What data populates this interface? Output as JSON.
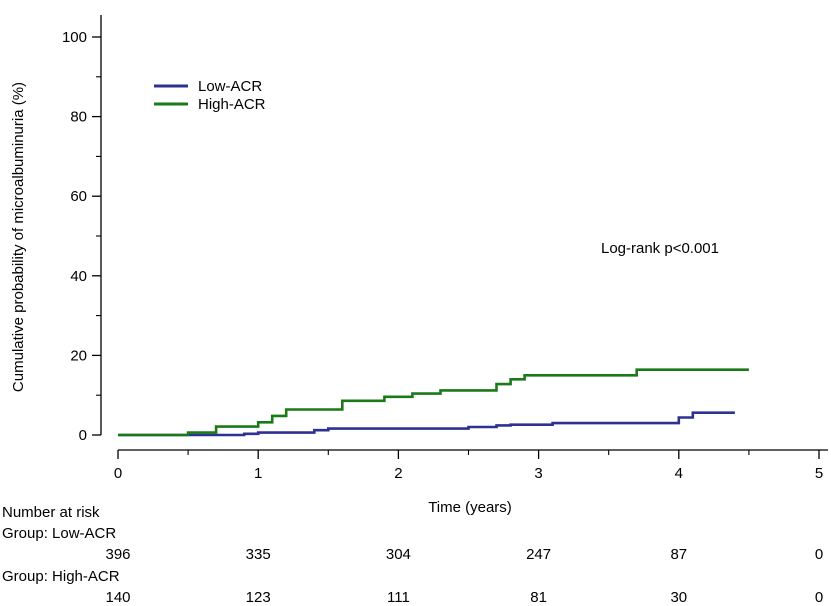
{
  "chart_data": {
    "type": "line",
    "xlabel": "Time (years)",
    "ylabel": "Cumulative probability of microalbuminuria (%)",
    "xlim": [
      0,
      5
    ],
    "ylim": [
      0,
      100
    ],
    "x_ticks": [
      0,
      1,
      2,
      3,
      4,
      5
    ],
    "y_ticks": [
      0,
      20,
      40,
      60,
      80,
      100
    ],
    "grid": false,
    "legend_position": "top-left",
    "annotation": "Log-rank p<0.001",
    "series": [
      {
        "name": "Low-ACR",
        "color": "#2e3192",
        "step": true,
        "points": [
          [
            0,
            0
          ],
          [
            0.7,
            0
          ],
          [
            0.9,
            0.3
          ],
          [
            1.0,
            0.6
          ],
          [
            1.4,
            1.2
          ],
          [
            1.5,
            1.6
          ],
          [
            2.5,
            2.0
          ],
          [
            2.7,
            2.4
          ],
          [
            2.8,
            2.6
          ],
          [
            3.1,
            3.0
          ],
          [
            3.9,
            3.0
          ],
          [
            4.0,
            4.4
          ],
          [
            4.1,
            5.6
          ],
          [
            4.4,
            5.6
          ]
        ]
      },
      {
        "name": "High-ACR",
        "color": "#1a7a1a",
        "step": true,
        "points": [
          [
            0,
            0
          ],
          [
            0.5,
            0.6
          ],
          [
            0.7,
            2.1
          ],
          [
            0.9,
            2.1
          ],
          [
            1.0,
            3.2
          ],
          [
            1.1,
            4.8
          ],
          [
            1.2,
            6.4
          ],
          [
            1.6,
            8.6
          ],
          [
            1.9,
            9.6
          ],
          [
            2.1,
            10.4
          ],
          [
            2.3,
            11.2
          ],
          [
            2.7,
            12.8
          ],
          [
            2.8,
            14.0
          ],
          [
            2.9,
            15.0
          ],
          [
            3.7,
            16.4
          ],
          [
            4.5,
            16.4
          ]
        ]
      }
    ],
    "risk_table": {
      "title": "Number at risk",
      "groups": [
        {
          "label": "Group: Low-ACR",
          "values": [
            "396",
            "335",
            "304",
            "247",
            "87",
            "0"
          ]
        },
        {
          "label": "Group: High-ACR",
          "values": [
            "140",
            "123",
            "111",
            "81",
            "30",
            "0"
          ]
        }
      ]
    }
  }
}
